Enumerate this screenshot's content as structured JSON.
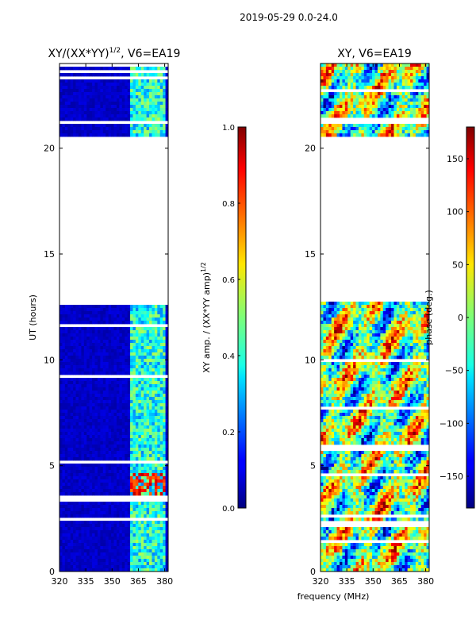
{
  "chart_data": [
    {
      "type": "heatmap",
      "suptitle": "2019-05-29 0.0-24.0",
      "title": "XY/(XX*YY)^{1/2}, V6=EA19",
      "title_main": "XY/(XX*YY)",
      "title_sup": "1/2",
      "title_tail": ", V6=EA19",
      "xlabel": "",
      "ylabel": "UT (hours)",
      "xlim": [
        320,
        382
      ],
      "ylim": [
        0,
        24
      ],
      "xticks": [
        "320",
        "335",
        "350",
        "365",
        "380"
      ],
      "yticks": [
        "0",
        "5",
        "10",
        "15",
        "20"
      ],
      "colorbar": {
        "label": "XY amp. / (XX*YY amp)^{1/2}",
        "label_main": "XY amp. / (XX*YY amp)",
        "label_sup": "1/2",
        "range": [
          0.0,
          1.0
        ],
        "ticks": [
          "0.0",
          "0.2",
          "0.4",
          "0.6",
          "0.8",
          "1.0"
        ]
      },
      "data_gap_hours": [
        12.7,
        20.5
      ],
      "bright_band_mhz": [
        361,
        381
      ]
    },
    {
      "type": "heatmap",
      "title": "XY, V6=EA19",
      "xlabel": "frequency (MHz)",
      "ylabel": "",
      "xlim": [
        320,
        382
      ],
      "ylim": [
        0,
        24
      ],
      "xticks": [
        "320",
        "335",
        "350",
        "365",
        "380"
      ],
      "yticks": [
        "0",
        "5",
        "10",
        "15",
        "20"
      ],
      "colorbar": {
        "label": "phase (deg.)",
        "range": [
          -180,
          180
        ],
        "ticks": [
          "−150",
          "−100",
          "−50",
          "0",
          "50",
          "100",
          "150"
        ]
      },
      "data_gap_hours": [
        12.7,
        20.5
      ]
    }
  ]
}
